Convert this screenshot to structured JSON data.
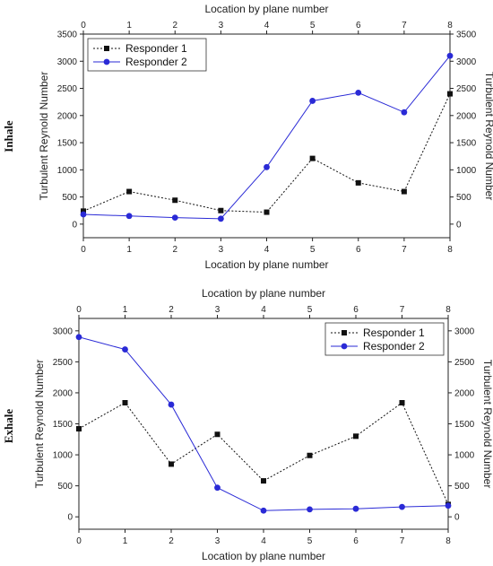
{
  "colors": {
    "responder1": "#111111",
    "responder2": "#2a2ad6"
  },
  "chart_data": [
    {
      "type": "line",
      "row_label": "Inhale",
      "xlabel_bottom": "Location by plane number",
      "xlabel_top": "Location by plane number",
      "ylabel_left": "Turbulent Reynold Number",
      "ylabel_right": "Turbulent Reynold Number",
      "x": [
        0,
        1,
        2,
        3,
        4,
        5,
        6,
        7,
        8
      ],
      "xlim": [
        0,
        8
      ],
      "ylim": [
        -250,
        3500
      ],
      "yticks": [
        0,
        500,
        1000,
        1500,
        2000,
        2500,
        3000,
        3500
      ],
      "legend_position": "top-left",
      "series": [
        {
          "name": "Responder 1",
          "marker": "square",
          "line": "dotted",
          "color_key": "responder1",
          "values": [
            240,
            600,
            440,
            250,
            220,
            1210,
            760,
            600,
            2400
          ]
        },
        {
          "name": "Responder 2",
          "marker": "circle",
          "line": "solid",
          "color_key": "responder2",
          "values": [
            180,
            150,
            120,
            100,
            1050,
            2270,
            2420,
            2060,
            3100
          ]
        }
      ]
    },
    {
      "type": "line",
      "row_label": "Exhale",
      "xlabel_bottom": "Location by plane number",
      "xlabel_top": "Location by plane number",
      "ylabel_left": "Turbulent Reynold Number",
      "ylabel_right": "Turbulent Reynold Number",
      "x": [
        0,
        1,
        2,
        3,
        4,
        5,
        6,
        7,
        8
      ],
      "xlim": [
        0,
        8
      ],
      "ylim": [
        -200,
        3200
      ],
      "yticks": [
        0,
        500,
        1000,
        1500,
        2000,
        2500,
        3000
      ],
      "legend_position": "top-right",
      "series": [
        {
          "name": "Responder 1",
          "marker": "square",
          "line": "dotted",
          "color_key": "responder1",
          "values": [
            1420,
            1840,
            850,
            1330,
            580,
            990,
            1300,
            1840,
            200
          ]
        },
        {
          "name": "Responder 2",
          "marker": "circle",
          "line": "solid",
          "color_key": "responder2",
          "values": [
            2900,
            2700,
            1810,
            470,
            100,
            120,
            130,
            160,
            180
          ]
        }
      ]
    }
  ]
}
